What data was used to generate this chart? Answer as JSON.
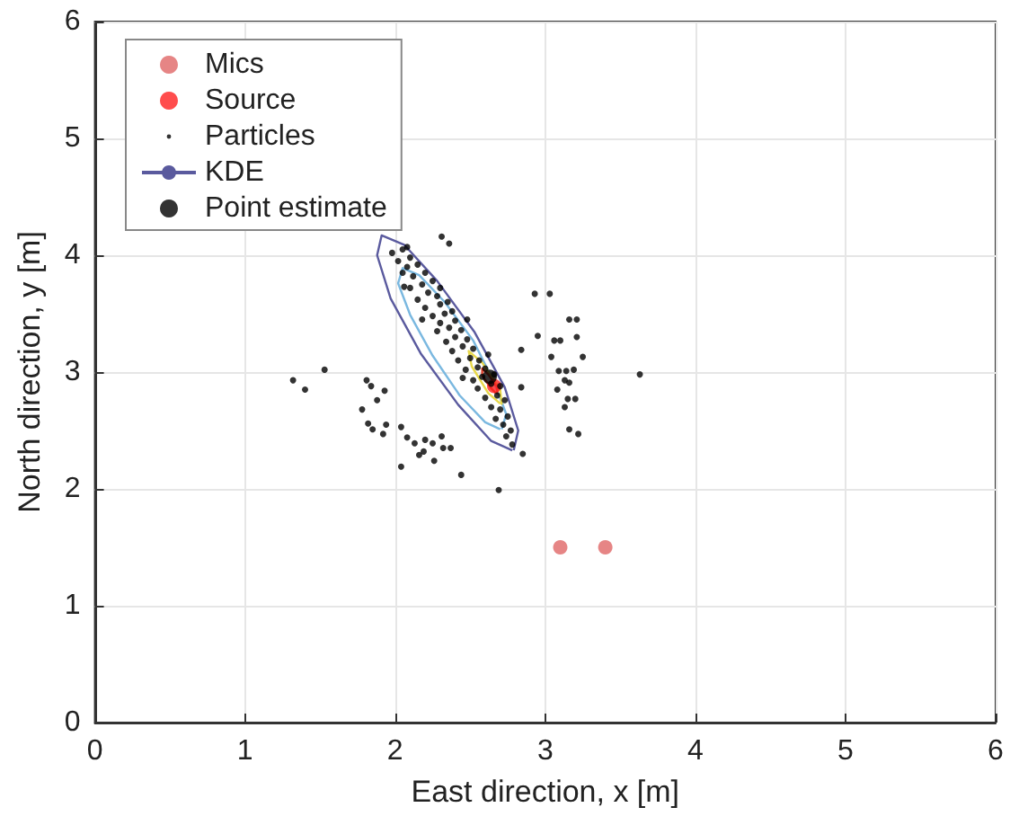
{
  "chart_data": {
    "type": "scatter",
    "xlabel": "East direction, x [m]",
    "ylabel": "North direction, y [m]",
    "xlim": [
      0,
      6
    ],
    "ylim": [
      0,
      6
    ],
    "xticks": [
      0,
      1,
      2,
      3,
      4,
      5,
      6
    ],
    "yticks": [
      0,
      1,
      2,
      3,
      4,
      5,
      6
    ],
    "grid": true,
    "legend": "top left",
    "series": [
      {
        "name": "Mics",
        "color": "#e06666",
        "marker": "circle",
        "x": [
          3.1,
          3.4
        ],
        "values": [
          1.5,
          1.5
        ]
      },
      {
        "name": "Source",
        "color": "#ff2020",
        "marker": "circle",
        "x": [
          2.66
        ],
        "values": [
          2.88
        ]
      },
      {
        "name": "Particles",
        "color": "#000000",
        "marker": "circle",
        "x": [
          1.32,
          1.4,
          1.53,
          1.81,
          1.84,
          1.93,
          1.88,
          1.78,
          1.82,
          1.85,
          1.94,
          1.92,
          2.04,
          2.08,
          2.13,
          2.2,
          2.25,
          2.31,
          2.37,
          2.32,
          2.19,
          2.16,
          2.26,
          2.04,
          2.44,
          2.69,
          2.93,
          3.03,
          3.16,
          3.21,
          2.95,
          3.06,
          3.1,
          3.21,
          3.25,
          3.04,
          2.84,
          3.09,
          3.14,
          3.19,
          3.13,
          3.16,
          3.08,
          3.15,
          3.2,
          3.13,
          2.84,
          3.16,
          3.22,
          3.63,
          2.85,
          2.31,
          2.36,
          2.08,
          2.06,
          1.98,
          2.05,
          2.02,
          2.1,
          2.08,
          2.15,
          2.05,
          2.12,
          2.2,
          2.18,
          2.1,
          2.25,
          2.22,
          2.15,
          2.28,
          2.3,
          2.2,
          2.35,
          2.25,
          2.33,
          2.38,
          2.3,
          2.4,
          2.36,
          2.28,
          2.44,
          2.4,
          2.34,
          2.48,
          2.45,
          2.38,
          2.52,
          2.5,
          2.42,
          2.56,
          2.55,
          2.47,
          2.6,
          2.58,
          2.52,
          2.66,
          2.64,
          2.55,
          2.7,
          2.68,
          2.6,
          2.73,
          2.7,
          2.64,
          2.75,
          2.72,
          2.67,
          2.77,
          2.74,
          2.78,
          2.3,
          2.18,
          2.48,
          2.62,
          2.45
        ],
        "values": [
          2.93,
          2.85,
          3.02,
          2.93,
          2.88,
          2.84,
          2.76,
          2.68,
          2.56,
          2.51,
          2.55,
          2.47,
          2.53,
          2.44,
          2.39,
          2.42,
          2.39,
          2.45,
          2.35,
          2.35,
          2.32,
          2.29,
          2.24,
          2.19,
          2.12,
          1.99,
          3.67,
          3.67,
          3.45,
          3.45,
          3.31,
          3.27,
          3.27,
          3.3,
          3.13,
          3.13,
          3.19,
          3.01,
          3.01,
          3.02,
          2.93,
          2.91,
          2.85,
          2.77,
          2.77,
          2.7,
          2.87,
          2.51,
          2.47,
          2.98,
          2.3,
          4.16,
          4.1,
          4.07,
          3.73,
          4.02,
          4.05,
          3.95,
          3.98,
          3.9,
          3.92,
          3.85,
          3.82,
          3.85,
          3.75,
          3.72,
          3.78,
          3.68,
          3.62,
          3.65,
          3.58,
          3.55,
          3.6,
          3.48,
          3.5,
          3.52,
          3.42,
          3.44,
          3.38,
          3.35,
          3.36,
          3.3,
          3.26,
          3.28,
          3.22,
          3.18,
          3.2,
          3.12,
          3.1,
          3.1,
          3.04,
          3.02,
          3.03,
          2.96,
          2.93,
          2.98,
          2.9,
          2.86,
          2.88,
          2.8,
          2.78,
          2.76,
          2.68,
          2.7,
          2.62,
          2.55,
          2.6,
          2.5,
          2.45,
          2.38,
          3.72,
          3.45,
          3.45,
          3.15,
          2.95
        ]
      },
      {
        "name": "KDE",
        "type": "line",
        "color": "#5a5a9e",
        "marker": "none",
        "line_style": "solid",
        "x": [
          2.79,
          2.82,
          2.73,
          2.53,
          2.28,
          2.06,
          1.91,
          1.88,
          1.97,
          2.17,
          2.42,
          2.64,
          2.78
        ],
        "values": [
          2.33,
          2.5,
          2.87,
          3.34,
          3.78,
          4.09,
          4.17,
          4.0,
          3.63,
          3.16,
          2.72,
          2.41,
          2.33
        ]
      },
      {
        "type": "line",
        "color": "#7ab8e0",
        "marker": "none",
        "line_style": "solid",
        "x": [
          2.71,
          2.74,
          2.66,
          2.52,
          2.33,
          2.16,
          2.05,
          2.02,
          2.1,
          2.25,
          2.43,
          2.6,
          2.7
        ],
        "values": [
          2.51,
          2.64,
          2.91,
          3.27,
          3.6,
          3.83,
          3.89,
          3.76,
          3.49,
          3.14,
          2.8,
          2.57,
          2.51
        ]
      },
      {
        "type": "line",
        "color": "#e8d84a",
        "marker": "none",
        "line_style": "solid",
        "x": [
          2.71,
          2.7,
          2.58,
          2.49,
          2.51,
          2.62,
          2.7
        ],
        "values": [
          2.72,
          2.85,
          3.08,
          3.18,
          3.05,
          2.82,
          2.73
        ]
      },
      {
        "type": "line",
        "color": "#e0402a",
        "marker": "none",
        "line_style": "solid",
        "x": [
          2.68,
          2.68,
          2.62,
          2.58,
          2.58,
          2.64,
          2.67
        ],
        "values": [
          2.81,
          2.87,
          2.98,
          3.03,
          2.97,
          2.86,
          2.82
        ]
      },
      {
        "name": "Point estimate",
        "color": "#000000",
        "marker": "circle",
        "x": [
          2.63
        ],
        "values": [
          2.96
        ]
      }
    ]
  }
}
